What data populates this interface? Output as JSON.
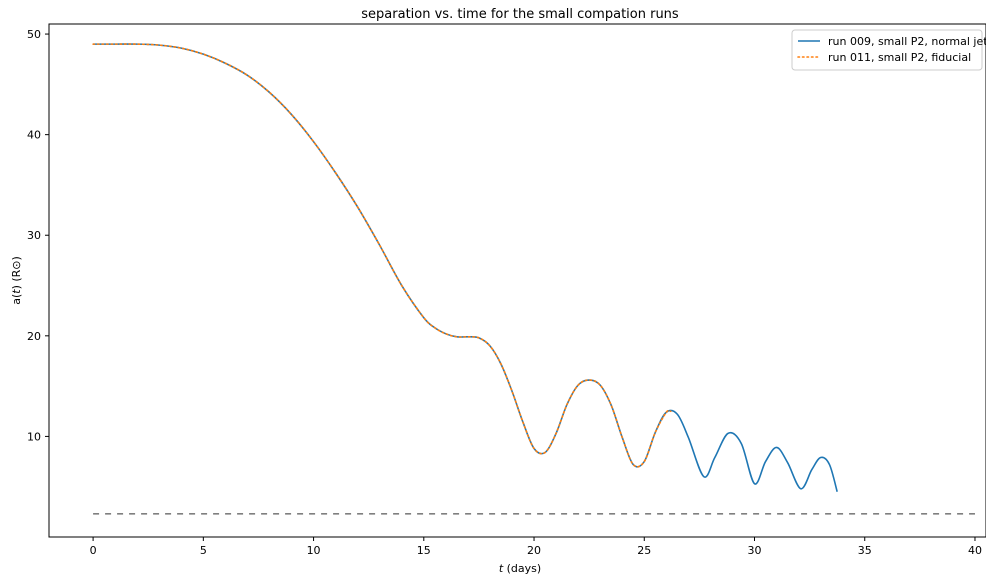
{
  "chart_data": {
    "type": "line",
    "title": "separation vs. time for the small compation runs",
    "xlabel": "t (days)",
    "ylabel": "a(t) (R⊙)",
    "xlim": [
      -2,
      40.5
    ],
    "ylim": [
      0,
      51
    ],
    "xticks": [
      0,
      5,
      10,
      15,
      20,
      25,
      30,
      35,
      40
    ],
    "yticks": [
      10,
      20,
      30,
      40,
      50
    ],
    "grid": false,
    "legend_position": "top-right",
    "series": [
      {
        "name": "run 009, small P2, normal jet",
        "style": "solid",
        "color": "#1f77b4",
        "x": [
          0,
          1,
          2,
          3,
          4,
          5,
          6,
          7,
          8,
          9,
          10,
          11,
          12,
          13,
          14,
          15,
          15.5,
          16,
          16.5,
          17,
          17.5,
          18,
          18.5,
          19,
          19.5,
          20,
          20.5,
          21,
          21.5,
          22,
          22.5,
          23,
          23.5,
          24,
          24.5,
          25,
          25.5,
          26,
          26.5,
          27,
          27.7,
          28.2,
          28.8,
          29.4,
          30.0,
          30.5,
          31.0,
          31.5,
          32.1,
          32.6,
          33.0,
          33.4,
          33.75
        ],
        "y": [
          49.0,
          49.0,
          49.0,
          48.9,
          48.6,
          48.0,
          47.1,
          45.9,
          44.2,
          42.0,
          39.3,
          36.2,
          32.8,
          29.0,
          25.0,
          21.8,
          20.8,
          20.2,
          19.9,
          19.9,
          19.8,
          19.0,
          17.2,
          14.5,
          11.4,
          8.8,
          8.4,
          10.3,
          13.2,
          15.1,
          15.6,
          15.1,
          13.1,
          9.9,
          7.2,
          7.5,
          10.4,
          12.4,
          12.2,
          9.9,
          6.0,
          7.9,
          10.3,
          9.3,
          5.3,
          7.5,
          8.9,
          7.4,
          4.8,
          6.7,
          7.9,
          7.2,
          4.5
        ]
      },
      {
        "name": "run 011, small P2, fiducial",
        "style": "dotted",
        "color": "#ff7f0e",
        "x": [
          0,
          1,
          2,
          3,
          4,
          5,
          6,
          7,
          8,
          9,
          10,
          11,
          12,
          13,
          14,
          15,
          15.5,
          16,
          16.5,
          17,
          17.5,
          18,
          18.5,
          19,
          19.5,
          20,
          20.5,
          21,
          21.5,
          22,
          22.5,
          23,
          23.5,
          24,
          24.5,
          25,
          25.5,
          26,
          26.2
        ],
        "y": [
          49.0,
          49.0,
          49.0,
          48.9,
          48.6,
          48.0,
          47.1,
          45.9,
          44.2,
          42.0,
          39.3,
          36.2,
          32.8,
          29.0,
          25.0,
          21.8,
          20.8,
          20.2,
          19.9,
          19.9,
          19.8,
          19.0,
          17.2,
          14.5,
          11.4,
          8.8,
          8.4,
          10.3,
          13.2,
          15.1,
          15.6,
          15.1,
          13.1,
          9.9,
          7.2,
          7.5,
          10.4,
          12.4,
          12.5
        ]
      },
      {
        "style": "dashed",
        "color": "#7f7f7f",
        "x": [
          0,
          40
        ],
        "y": [
          2.3,
          2.3
        ]
      }
    ]
  }
}
